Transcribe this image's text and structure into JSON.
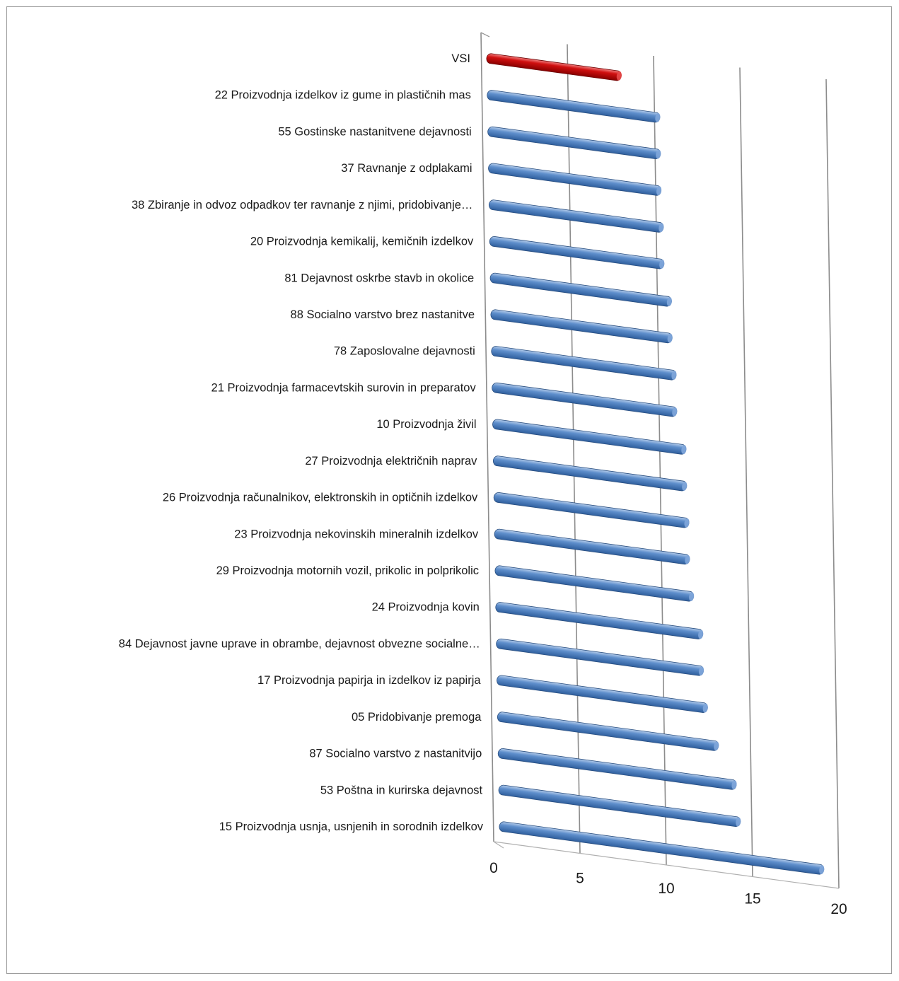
{
  "chart_data": {
    "type": "bar",
    "orientation": "horizontal",
    "style": "3d-cylinder",
    "categories": [
      "VSI",
      "22 Proizvodnja izdelkov iz gume in plastičnih mas",
      "55 Gostinske nastanitvene dejavnosti",
      "37 Ravnanje z odplakami",
      "38 Zbiranje in odvoz odpadkov ter ravnanje z njimi, pridobivanje…",
      "20 Proizvodnja kemikalij, kemičnih izdelkov",
      "81 Dejavnost oskrbe stavb in okolice",
      "88 Socialno varstvo brez nastanitve",
      "78 Zaposlovalne dejavnosti",
      "21 Proizvodnja farmacevtskih surovin in preparatov",
      "10 Proizvodnja živil",
      "27 Proizvodnja električnih naprav",
      "26 Proizvodnja računalnikov, elektronskih in optičnih izdelkov",
      "23 Proizvodnja nekovinskih mineralnih izdelkov",
      "29 Proizvodnja motornih vozil, prikolic in polprikolic",
      "24 Proizvodnja kovin",
      "84 Dejavnost javne uprave in obrambe, dejavnost obvezne socialne…",
      "17 Proizvodnja papirja in izdelkov iz papirja",
      "05 Pridobivanje premoga",
      "87 Socialno varstvo z nastanitvijo",
      "53 Poštna in kurirska dejavnost",
      "15 Proizvodnja usnja, usnjenih in sorodnih izdelkov"
    ],
    "values": [
      7.8,
      10.0,
      10.0,
      10.0,
      10.1,
      10.1,
      10.5,
      10.5,
      10.7,
      10.7,
      11.2,
      11.2,
      11.3,
      11.3,
      11.5,
      12.0,
      12.0,
      12.2,
      12.8,
      13.8,
      14.0,
      18.8
    ],
    "highlight_color": "#c00000",
    "bar_color": "#4f81bd",
    "highlight_index": 0,
    "xlim": [
      0,
      20
    ],
    "x_ticks": [
      "0",
      "5",
      "10",
      "15",
      "20"
    ],
    "title": "",
    "xlabel": "",
    "ylabel": "",
    "grid": true
  }
}
